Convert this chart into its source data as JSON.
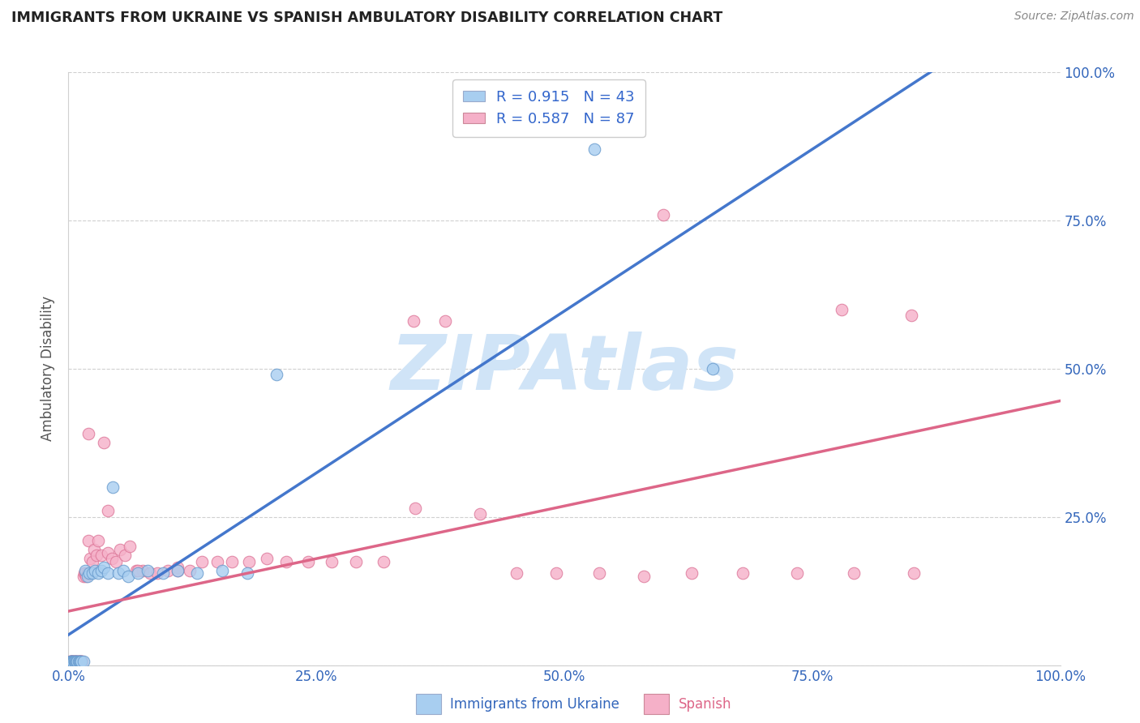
{
  "title": "IMMIGRANTS FROM UKRAINE VS SPANISH AMBULATORY DISABILITY CORRELATION CHART",
  "source": "Source: ZipAtlas.com",
  "ylabel": "Ambulatory Disability",
  "legend_label_ukraine": "Immigrants from Ukraine",
  "legend_label_spanish": "Spanish",
  "xlim": [
    0.0,
    1.0
  ],
  "ylim": [
    0.0,
    1.0
  ],
  "xtick_vals": [
    0.0,
    0.25,
    0.5,
    0.75,
    1.0
  ],
  "xtick_labels": [
    "0.0%",
    "25.0%",
    "50.0%",
    "75.0%",
    "100.0%"
  ],
  "ytick_vals": [
    0.0,
    0.25,
    0.5,
    0.75,
    1.0
  ],
  "right_ytick_labels": [
    "100.0%",
    "75.0%",
    "50.0%",
    "25.0%",
    "0.0%"
  ],
  "ukraine_color": "#a8cef0",
  "ukraine_edge_color": "#6699cc",
  "ukraine_line_color": "#4477cc",
  "spanish_color": "#f5b0c8",
  "spanish_edge_color": "#dd7799",
  "spanish_line_color": "#dd6688",
  "ukraine_R": 0.915,
  "ukraine_N": 43,
  "spanish_R": 0.587,
  "spanish_N": 87,
  "legend_text_color": "#3366cc",
  "legend_N_color": "#cc4400",
  "watermark": "ZIPAtlas",
  "watermark_color": "#d0e4f7",
  "ukraine_x": [
    0.001,
    0.002,
    0.002,
    0.003,
    0.003,
    0.004,
    0.004,
    0.005,
    0.005,
    0.006,
    0.006,
    0.007,
    0.008,
    0.008,
    0.009,
    0.01,
    0.011,
    0.012,
    0.013,
    0.015,
    0.017,
    0.019,
    0.021,
    0.024,
    0.027,
    0.03,
    0.033,
    0.036,
    0.04,
    0.045,
    0.05,
    0.055,
    0.06,
    0.07,
    0.08,
    0.095,
    0.11,
    0.13,
    0.155,
    0.18,
    0.21,
    0.53,
    0.65
  ],
  "ukraine_y": [
    0.005,
    0.006,
    0.005,
    0.007,
    0.006,
    0.005,
    0.007,
    0.006,
    0.005,
    0.006,
    0.007,
    0.005,
    0.006,
    0.007,
    0.006,
    0.007,
    0.006,
    0.007,
    0.006,
    0.007,
    0.16,
    0.15,
    0.155,
    0.155,
    0.16,
    0.155,
    0.16,
    0.165,
    0.155,
    0.3,
    0.155,
    0.16,
    0.15,
    0.155,
    0.16,
    0.155,
    0.16,
    0.155,
    0.16,
    0.155,
    0.49,
    0.87,
    0.5
  ],
  "spanish_x": [
    0.001,
    0.001,
    0.002,
    0.002,
    0.003,
    0.003,
    0.003,
    0.004,
    0.004,
    0.004,
    0.005,
    0.005,
    0.005,
    0.006,
    0.006,
    0.006,
    0.007,
    0.007,
    0.007,
    0.008,
    0.008,
    0.009,
    0.009,
    0.01,
    0.01,
    0.011,
    0.011,
    0.012,
    0.013,
    0.013,
    0.014,
    0.015,
    0.016,
    0.017,
    0.018,
    0.019,
    0.02,
    0.022,
    0.024,
    0.026,
    0.028,
    0.03,
    0.033,
    0.036,
    0.04,
    0.044,
    0.048,
    0.052,
    0.057,
    0.062,
    0.068,
    0.075,
    0.082,
    0.09,
    0.1,
    0.11,
    0.122,
    0.135,
    0.15,
    0.165,
    0.182,
    0.2,
    0.22,
    0.242,
    0.265,
    0.29,
    0.318,
    0.348,
    0.38,
    0.415,
    0.452,
    0.492,
    0.535,
    0.58,
    0.628,
    0.68,
    0.735,
    0.792,
    0.852,
    0.04,
    0.07,
    0.11,
    0.35,
    0.6,
    0.78,
    0.85,
    0.02
  ],
  "spanish_y": [
    0.005,
    0.007,
    0.005,
    0.007,
    0.005,
    0.006,
    0.007,
    0.005,
    0.006,
    0.007,
    0.005,
    0.006,
    0.007,
    0.005,
    0.006,
    0.007,
    0.005,
    0.006,
    0.007,
    0.005,
    0.006,
    0.005,
    0.007,
    0.006,
    0.007,
    0.005,
    0.006,
    0.007,
    0.006,
    0.007,
    0.006,
    0.15,
    0.155,
    0.155,
    0.15,
    0.155,
    0.21,
    0.18,
    0.175,
    0.195,
    0.185,
    0.21,
    0.185,
    0.375,
    0.19,
    0.18,
    0.175,
    0.195,
    0.185,
    0.2,
    0.16,
    0.16,
    0.155,
    0.155,
    0.16,
    0.165,
    0.16,
    0.175,
    0.175,
    0.175,
    0.175,
    0.18,
    0.175,
    0.175,
    0.175,
    0.175,
    0.175,
    0.58,
    0.58,
    0.255,
    0.155,
    0.155,
    0.155,
    0.15,
    0.155,
    0.155,
    0.155,
    0.155,
    0.155,
    0.26,
    0.16,
    0.16,
    0.265,
    0.76,
    0.6,
    0.59,
    0.39
  ]
}
